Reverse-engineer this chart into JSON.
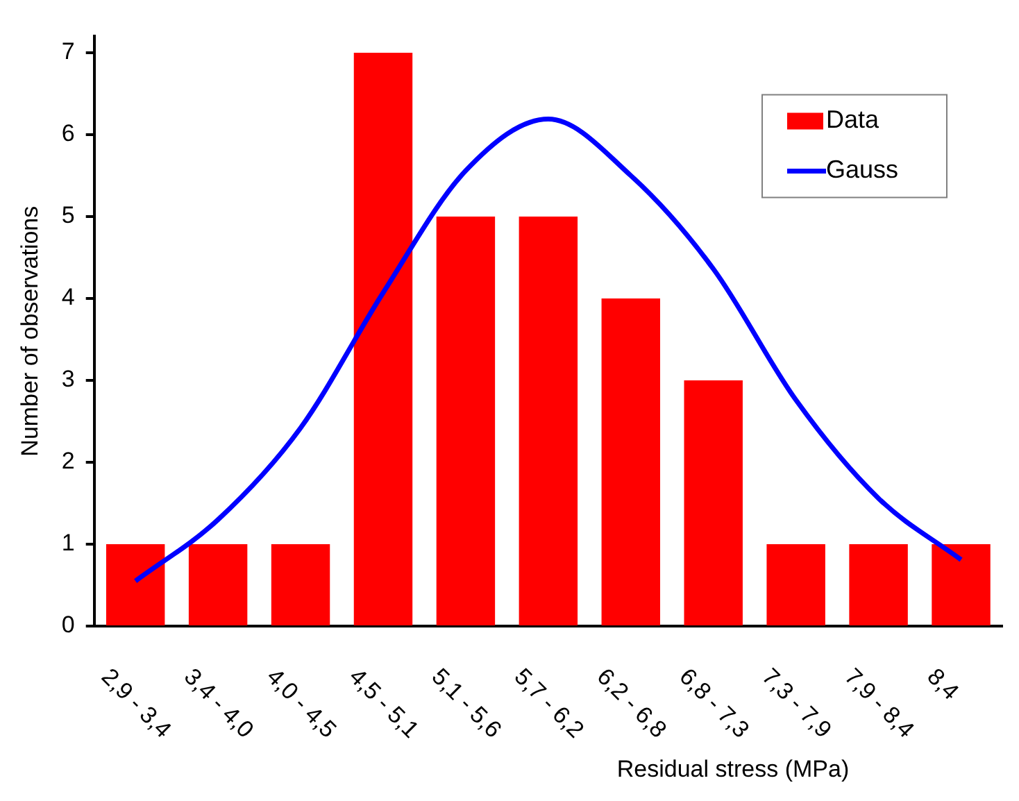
{
  "chart_data": {
    "type": "bar",
    "xlabel": "Residual stress (MPa)",
    "ylabel": "Number of observations",
    "categories": [
      "2,9 - 3,4",
      "3,4 - 4,0",
      "4,0 - 4,5",
      "4,5 - 5,1",
      "5,1 - 5,6",
      "5,7 - 6,2",
      "6,2 - 6,8",
      "6,8 - 7,3",
      "7,3 - 7,9",
      "7,9 - 8,4",
      "8,4"
    ],
    "series": [
      {
        "name": "Data",
        "color": "#ff0000",
        "values": [
          1,
          1,
          1,
          7,
          5,
          5,
          4,
          3,
          1,
          1,
          1
        ]
      },
      {
        "name": "Gauss",
        "type": "line",
        "color": "#0000ff",
        "values": [
          0.55,
          1.3,
          2.42,
          4.07,
          5.56,
          6.19,
          5.5,
          4.36,
          2.76,
          1.56,
          0.81
        ]
      }
    ],
    "ylim": [
      0,
      7.2
    ],
    "yticks": [
      0,
      1,
      2,
      3,
      4,
      5,
      6,
      7
    ],
    "grid": false,
    "legend": "top right",
    "marker": "none",
    "line_style": "solid"
  }
}
